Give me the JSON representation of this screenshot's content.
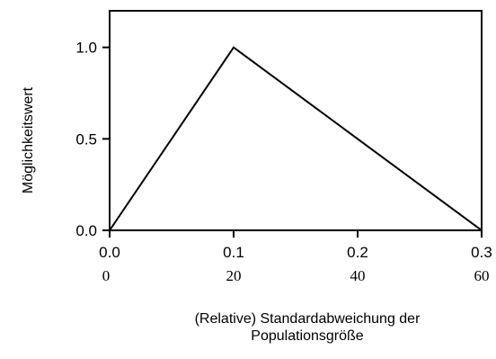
{
  "chart_data": {
    "type": "line",
    "x": [
      0.0,
      0.1,
      0.3
    ],
    "y": [
      0.0,
      1.0,
      0.0
    ],
    "xlim": [
      0.0,
      0.3
    ],
    "ylim": [
      0.0,
      1.2
    ],
    "x_ticks": [
      "0.0",
      "0.1",
      "0.2",
      "0.3"
    ],
    "x_tick_values": [
      0.0,
      0.1,
      0.2,
      0.3
    ],
    "x_secondary_ticks": [
      "0",
      "20",
      "40",
      "60"
    ],
    "y_ticks": [
      "0.0",
      "0.5",
      "1.0"
    ],
    "y_tick_values": [
      0.0,
      0.5,
      1.0
    ],
    "xlabel_line1": "(Relative) Standardabweichung der",
    "xlabel_line2": "Populationsgröße",
    "ylabel": "Möglichkeitswert",
    "grid": false,
    "line_color": "#000000"
  }
}
